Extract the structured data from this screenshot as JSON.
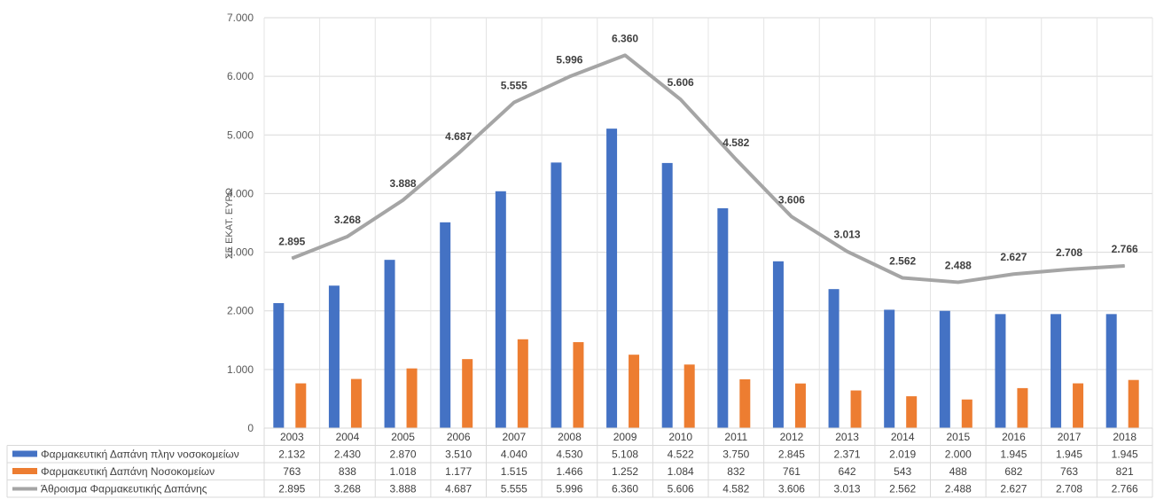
{
  "chart_data": {
    "type": "bar",
    "ylabel": "ΣΕ ΕΚΑΤ. ΕΥΡΩ",
    "ylim": [
      0,
      7000
    ],
    "yticks": [
      0,
      1000,
      2000,
      3000,
      4000,
      5000,
      6000,
      7000
    ],
    "ytick_labels": [
      "0",
      "1.000",
      "2.000",
      "3.000",
      "4.000",
      "5.000",
      "6.000",
      "7.000"
    ],
    "grid": true,
    "legend": "data-table",
    "categories": [
      "2003",
      "2004",
      "2005",
      "2006",
      "2007",
      "2008",
      "2009",
      "2010",
      "2011",
      "2012",
      "2013",
      "2014",
      "2015",
      "2016",
      "2017",
      "2018"
    ],
    "series": [
      {
        "name": "Φαρμακευτική Δαπάνη πλην νοσοκομείων",
        "kind": "bar",
        "color": "#4472C4",
        "values": [
          2132,
          2430,
          2870,
          3510,
          4040,
          4530,
          5108,
          4522,
          3750,
          2845,
          2371,
          2019,
          2000,
          1945,
          1945,
          1945
        ],
        "labels": [
          "2.132",
          "2.430",
          "2.870",
          "3.510",
          "4.040",
          "4.530",
          "5.108",
          "4.522",
          "3.750",
          "2.845",
          "2.371",
          "2.019",
          "2.000",
          "1.945",
          "1.945",
          "1.945"
        ]
      },
      {
        "name": "Φαρμακευτική Δαπάνη Νοσοκομείων",
        "kind": "bar",
        "color": "#ED7D31",
        "values": [
          763,
          838,
          1018,
          1177,
          1515,
          1466,
          1252,
          1084,
          832,
          761,
          642,
          543,
          488,
          682,
          763,
          821
        ],
        "labels": [
          "763",
          "838",
          "1.018",
          "1.177",
          "1.515",
          "1.466",
          "1.252",
          "1.084",
          "832",
          "761",
          "642",
          "543",
          "488",
          "682",
          "763",
          "821"
        ]
      },
      {
        "name": "Άθροισμα Φαρμακευτικής Δαπάνης",
        "kind": "line",
        "color": "#A5A5A5",
        "values": [
          2895,
          3268,
          3888,
          4687,
          5555,
          5996,
          6360,
          5606,
          4582,
          3606,
          3013,
          2562,
          2488,
          2627,
          2708,
          2766
        ],
        "labels": [
          "2.895",
          "3.268",
          "3.888",
          "4.687",
          "5.555",
          "5.996",
          "6.360",
          "5.606",
          "4.582",
          "3.606",
          "3.013",
          "2.562",
          "2.488",
          "2.627",
          "2.708",
          "2.766"
        ]
      }
    ]
  }
}
